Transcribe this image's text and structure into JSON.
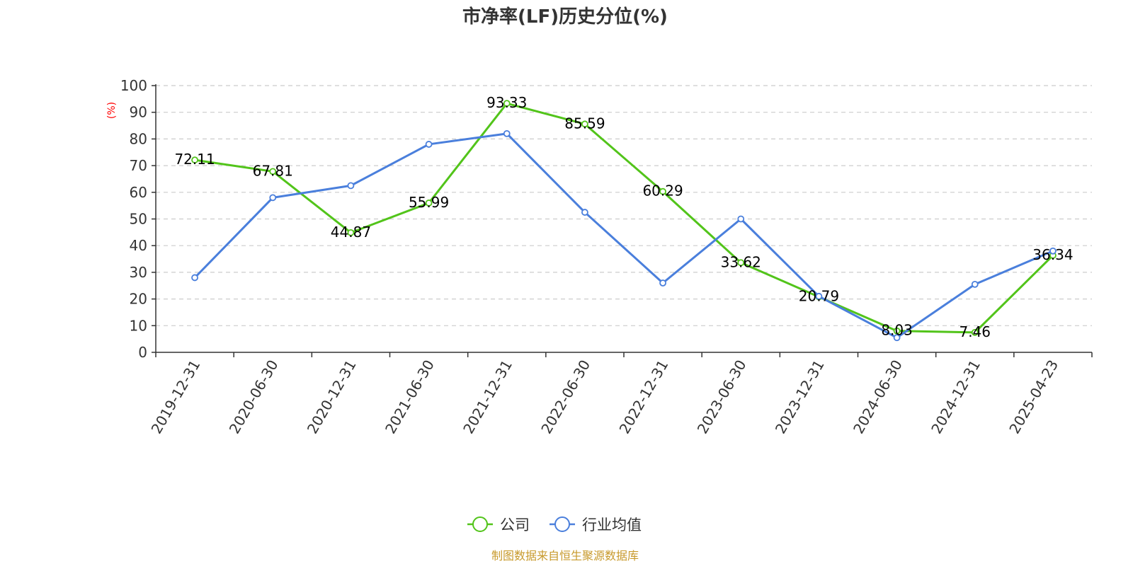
{
  "chart_data": {
    "type": "line",
    "title": "市净率(LF)历史分位(%)",
    "ylabel": "(%)",
    "xlabel": "",
    "ylim": [
      0,
      100
    ],
    "yticks": [
      0,
      10,
      20,
      30,
      40,
      50,
      60,
      70,
      80,
      90,
      100
    ],
    "grid": true,
    "legend_position": "bottom",
    "categories": [
      "2019-12-31",
      "2020-06-30",
      "2020-12-31",
      "2021-06-30",
      "2021-12-31",
      "2022-06-30",
      "2022-12-31",
      "2023-06-30",
      "2023-12-31",
      "2024-06-30",
      "2024-12-31",
      "2025-04-23"
    ],
    "series": [
      {
        "name": "公司",
        "color": "#52c41a",
        "values": [
          72.11,
          67.81,
          44.87,
          55.99,
          93.33,
          85.59,
          60.29,
          33.62,
          20.79,
          8.03,
          7.46,
          36.34
        ],
        "labels": [
          "72.11",
          "67.81",
          "44.87",
          "55.99",
          "93.33",
          "85.59",
          "60.29",
          "33.62",
          "20.79",
          "8.03",
          "7.46",
          "36.34"
        ]
      },
      {
        "name": "行业均值",
        "color": "#4a7fdc",
        "values": [
          28,
          58,
          62.5,
          78,
          82,
          52.5,
          26,
          50,
          21,
          5.5,
          25.5,
          38
        ]
      }
    ]
  },
  "source": "制图数据来自恒生聚源数据库"
}
